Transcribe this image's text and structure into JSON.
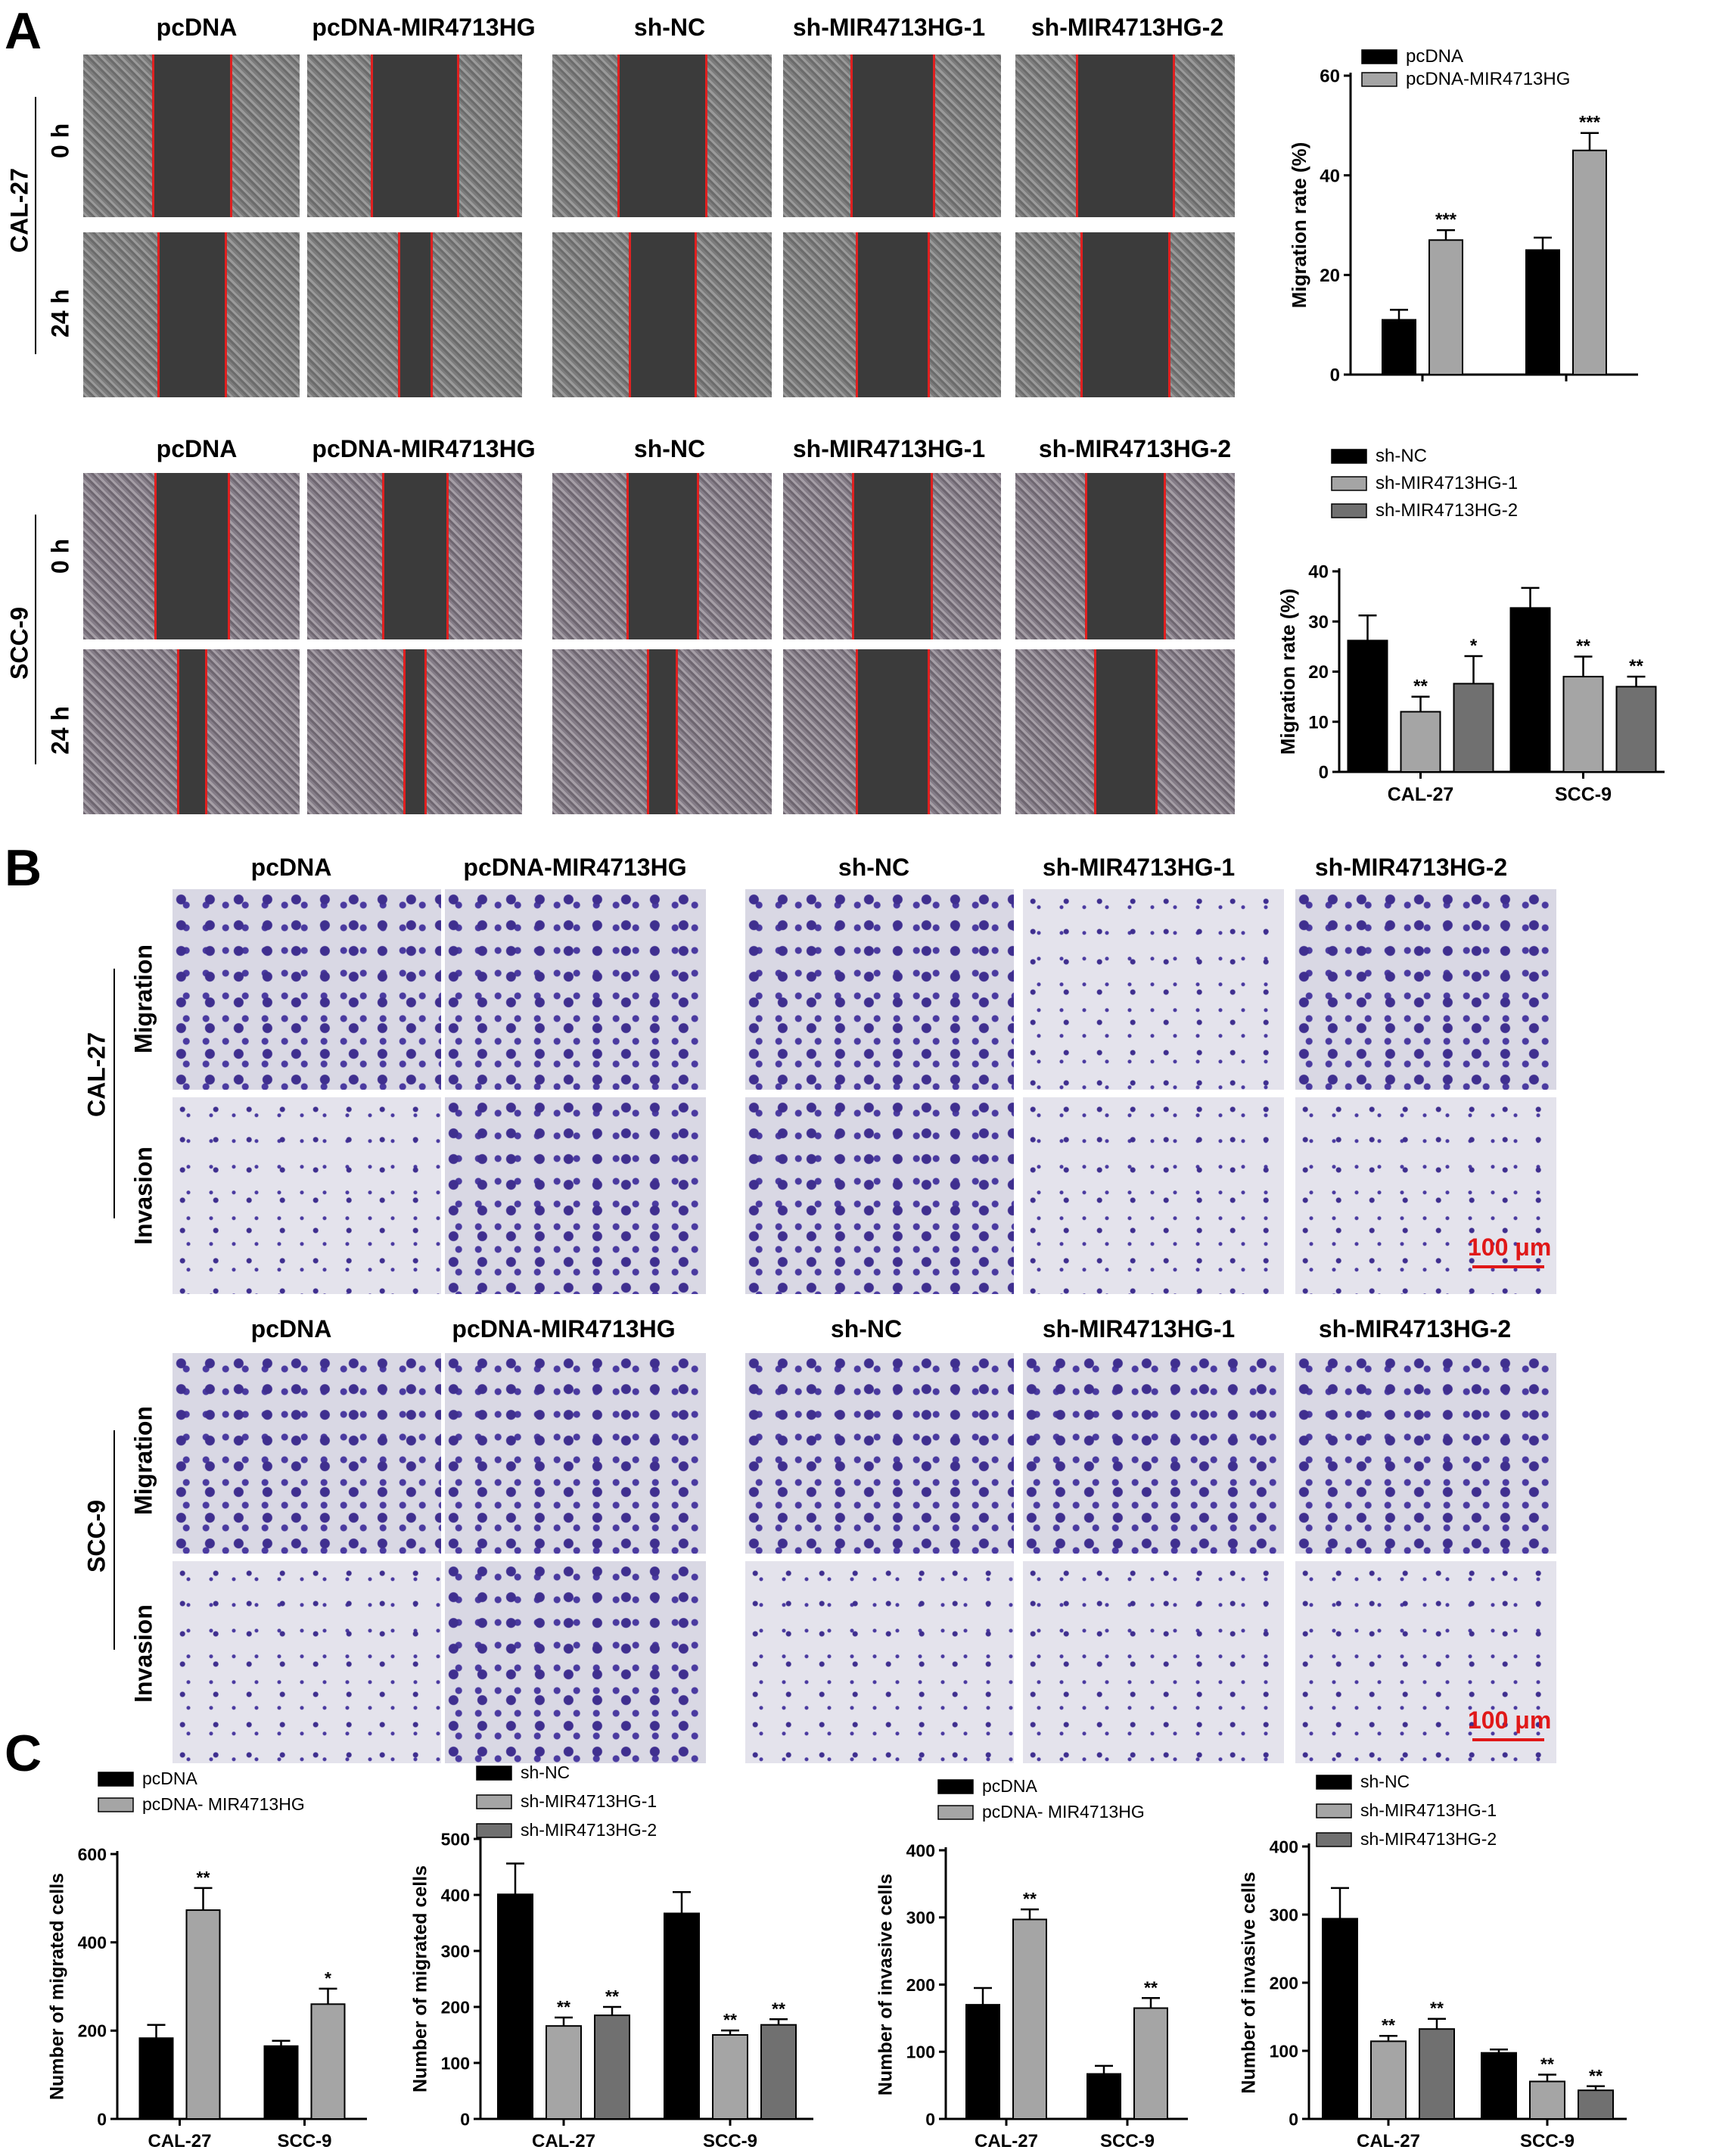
{
  "panels": {
    "A": "A",
    "B": "B",
    "C": "C"
  },
  "panel_a": {
    "cal27": {
      "cell_line": "CAL-27",
      "headers": [
        "pcDNA",
        "pcDNA-MIR4713HG",
        "sh-NC",
        "sh-MIR4713HG-1",
        "sh-MIR4713HG-2"
      ],
      "rows": [
        "0 h",
        "24 h"
      ]
    },
    "scc9": {
      "cell_line": "SCC-9",
      "headers": [
        "pcDNA",
        "pcDNA-MIR4713HG",
        "sh-NC",
        "sh-MIR4713HG-1",
        "sh-MIR4713HG-2"
      ],
      "rows": [
        "0 h",
        "24 h"
      ]
    }
  },
  "panel_b": {
    "cal27": {
      "cell_line": "CAL-27",
      "headers": [
        "pcDNA",
        "pcDNA-MIR4713HG",
        "sh-NC",
        "sh-MIR4713HG-1",
        "sh-MIR4713HG-2"
      ],
      "rows": [
        "Migration",
        "Invasion"
      ],
      "scale_bar": "100 μm"
    },
    "scc9": {
      "cell_line": "SCC-9",
      "headers": [
        "pcDNA",
        "pcDNA-MIR4713HG",
        "sh-NC",
        "sh-MIR4713HG-1",
        "sh-MIR4713HG-2"
      ],
      "rows": [
        "Migration",
        "Invasion"
      ],
      "scale_bar": "100 μm"
    }
  },
  "chart_data": [
    {
      "id": "a1",
      "type": "bar",
      "categories": [
        "CAL-27",
        "SCC-9"
      ],
      "series": [
        {
          "name": "pcDNA",
          "values": [
            11,
            25
          ],
          "errors": [
            2,
            2.5
          ],
          "sig": [
            "",
            ""
          ],
          "color": "#000000"
        },
        {
          "name": "pcDNA-MIR4713HG",
          "values": [
            27,
            45
          ],
          "errors": [
            2,
            3.5
          ],
          "sig": [
            "***",
            "***"
          ],
          "color": "#a5a5a5"
        }
      ],
      "ylabel": "Migration rate (%)",
      "ylim": [
        0,
        60
      ],
      "yticks": [
        0,
        20,
        40,
        60
      ],
      "legend": "top-left"
    },
    {
      "id": "a2",
      "type": "bar",
      "categories": [
        "CAL-27",
        "SCC-9"
      ],
      "series": [
        {
          "name": "sh-NC",
          "values": [
            26.2,
            32.7
          ],
          "errors": [
            5,
            4
          ],
          "sig": [
            "",
            ""
          ],
          "color": "#000000"
        },
        {
          "name": "sh-MIR4713HG-1",
          "values": [
            12,
            19
          ],
          "errors": [
            3,
            4
          ],
          "sig": [
            "**",
            "**"
          ],
          "color": "#a5a5a5"
        },
        {
          "name": "sh-MIR4713HG-2",
          "values": [
            17.6,
            17
          ],
          "errors": [
            5.5,
            2
          ],
          "sig": [
            "*",
            "**"
          ],
          "color": "#707070"
        }
      ],
      "ylabel": "Migration rate  (%)",
      "ylim": [
        0,
        40
      ],
      "yticks": [
        0,
        10,
        20,
        30,
        40
      ],
      "legend": "top-left"
    },
    {
      "id": "c1",
      "type": "bar",
      "categories": [
        "CAL-27",
        "SCC-9"
      ],
      "series": [
        {
          "name": "pcDNA",
          "values": [
            183,
            165
          ],
          "errors": [
            30,
            12
          ],
          "sig": [
            "",
            ""
          ],
          "color": "#000000"
        },
        {
          "name": "pcDNA- MIR4713HG",
          "values": [
            473,
            260
          ],
          "errors": [
            50,
            35
          ],
          "sig": [
            "**",
            "*"
          ],
          "color": "#a5a5a5"
        }
      ],
      "ylabel": "Number of migrated cells",
      "ylim": [
        0,
        600
      ],
      "yticks": [
        0,
        200,
        400,
        600
      ],
      "legend": "top-left"
    },
    {
      "id": "c2",
      "type": "bar",
      "categories": [
        "CAL-27",
        "SCC-9"
      ],
      "series": [
        {
          "name": "sh-NC",
          "values": [
            401,
            367
          ],
          "errors": [
            55,
            38
          ],
          "sig": [
            "",
            ""
          ],
          "color": "#000000"
        },
        {
          "name": "sh-MIR4713HG-1",
          "values": [
            166,
            150
          ],
          "errors": [
            15,
            8
          ],
          "sig": [
            "**",
            "**"
          ],
          "color": "#a5a5a5"
        },
        {
          "name": "sh-MIR4713HG-2",
          "values": [
            185,
            168
          ],
          "errors": [
            15,
            10
          ],
          "sig": [
            "**",
            "**"
          ],
          "color": "#707070"
        }
      ],
      "ylabel": "Number of migrated cells",
      "ylim": [
        0,
        500
      ],
      "yticks": [
        0,
        100,
        200,
        300,
        400,
        500
      ],
      "legend": "top-left"
    },
    {
      "id": "c3",
      "type": "bar",
      "categories": [
        "CAL-27",
        "SCC-9"
      ],
      "series": [
        {
          "name": "pcDNA",
          "values": [
            170,
            67
          ],
          "errors": [
            25,
            12
          ],
          "sig": [
            "",
            ""
          ],
          "color": "#000000"
        },
        {
          "name": "pcDNA- MIR4713HG",
          "values": [
            297,
            165
          ],
          "errors": [
            15,
            15
          ],
          "sig": [
            "**",
            "**"
          ],
          "color": "#a5a5a5"
        }
      ],
      "ylabel": "Number of invasive cells",
      "ylim": [
        0,
        400
      ],
      "yticks": [
        0,
        100,
        200,
        300,
        400
      ],
      "legend": "top-left"
    },
    {
      "id": "c4",
      "type": "bar",
      "categories": [
        "CAL-27",
        "SCC-9"
      ],
      "series": [
        {
          "name": "sh-NC",
          "values": [
            294,
            97
          ],
          "errors": [
            45,
            5
          ],
          "sig": [
            "",
            ""
          ],
          "color": "#000000"
        },
        {
          "name": "sh-MIR4713HG-1",
          "values": [
            114,
            55
          ],
          "errors": [
            8,
            10
          ],
          "sig": [
            "**",
            "**"
          ],
          "color": "#a5a5a5"
        },
        {
          "name": "sh-MIR4713HG-2",
          "values": [
            132,
            42
          ],
          "errors": [
            15,
            6
          ],
          "sig": [
            "**",
            "**"
          ],
          "color": "#707070"
        }
      ],
      "ylabel": "Number of invasive cells",
      "ylim": [
        0,
        400
      ],
      "yticks": [
        0,
        100,
        200,
        300,
        400
      ],
      "legend": "top-left"
    }
  ]
}
